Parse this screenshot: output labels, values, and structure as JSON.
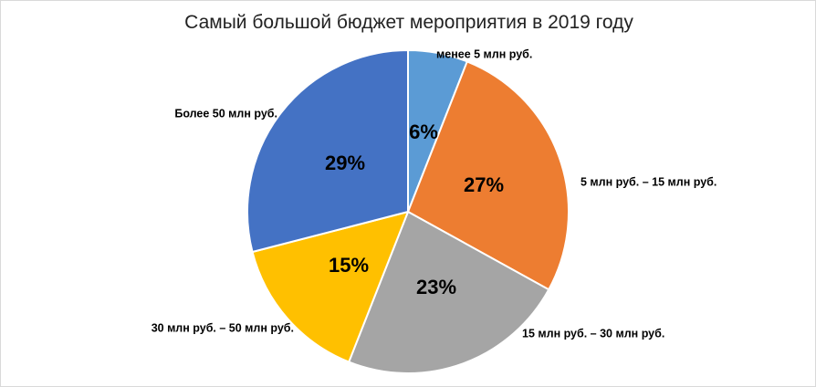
{
  "chart_data": {
    "type": "pie",
    "title": "Самый большой бюджет мероприятия в 2019 году",
    "categories": [
      "менее 5 млн руб.",
      "5 млн руб. – 15 млн руб.",
      "15 млн руб. – 30 млн руб.",
      "30 млн руб. – 50 млн руб.",
      "Более 50 млн руб."
    ],
    "values": [
      6,
      27,
      23,
      15,
      29
    ],
    "labels": [
      "6%",
      "27%",
      "23%",
      "15%",
      "29%"
    ],
    "colors": [
      "#5B9BD5",
      "#ED7D31",
      "#A5A5A5",
      "#FFC000",
      "#4472C4"
    ],
    "legend": "none"
  }
}
